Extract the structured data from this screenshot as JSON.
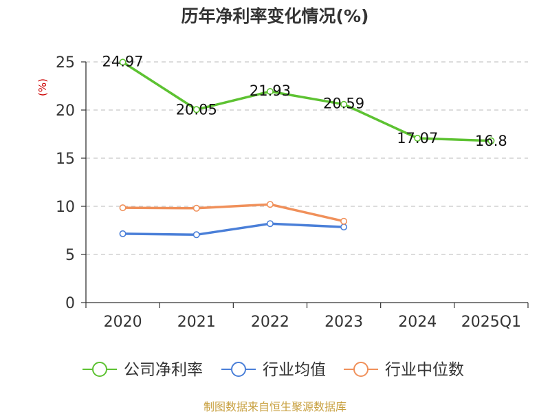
{
  "title": "历年净利率变化情况(%)",
  "source": "制图数据来自恒生聚源数据库",
  "chart_data": {
    "type": "line",
    "title": "历年净利率变化情况(%)",
    "ylabel": "(%)",
    "xlabel": "",
    "categories": [
      "2020",
      "2021",
      "2022",
      "2023",
      "2024",
      "2025Q1"
    ],
    "ylim": [
      0,
      25
    ],
    "yticks": [
      0,
      5,
      10,
      15,
      20,
      25
    ],
    "grid": "horizontal-dashed",
    "legend_position": "bottom",
    "series": [
      {
        "name": "公司净利率",
        "color": "#5dc232",
        "values": [
          24.97,
          20.05,
          21.93,
          20.59,
          17.07,
          16.8
        ],
        "labels": [
          "24.97",
          "20.05",
          "21.93",
          "20.59",
          "17.07",
          "16.8"
        ]
      },
      {
        "name": "行业均值",
        "color": "#4a7fd8",
        "values": [
          7.15,
          7.05,
          8.2,
          7.85,
          null,
          null
        ]
      },
      {
        "name": "行业中位数",
        "color": "#f0905a",
        "values": [
          9.85,
          9.8,
          10.2,
          8.45,
          null,
          null
        ]
      }
    ]
  }
}
